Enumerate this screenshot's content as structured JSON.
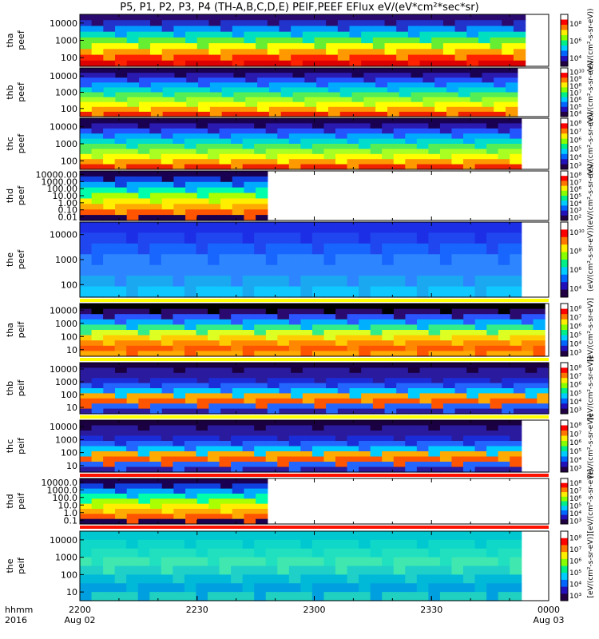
{
  "title": "P5, P1, P2, P3, P4 (TH-A,B,C,D,E) PEIF,PEEF EFlux eV/(eV*cm²*sec*sr)",
  "time_axis": {
    "label_top": "hhmm",
    "label_bottom": "2016",
    "ticks": [
      {
        "t": 0,
        "l1": "2200",
        "l2": "Aug 02"
      },
      {
        "t": 30,
        "l1": "2230",
        "l2": ""
      },
      {
        "t": 60,
        "l1": "2300",
        "l2": ""
      },
      {
        "t": 90,
        "l1": "2330",
        "l2": ""
      },
      {
        "t": 120,
        "l1": "0000",
        "l2": "Aug 03"
      }
    ]
  },
  "colorbar_label": "[eV/(cm²-s-sr-eV)]",
  "chart_data": [
    {
      "type": "heatmap",
      "probe": "tha",
      "ylabel": [
        "tha",
        "peef"
      ],
      "yticks": [
        "10000",
        "1000",
        "100"
      ],
      "cbar": [
        "10⁸",
        "10⁶",
        "10⁴"
      ],
      "t_end": 114,
      "band": "red",
      "cbar_label": "(eV/(cm²-s-sr-eV))"
    },
    {
      "type": "heatmap",
      "probe": "thb",
      "ylabel": [
        "thb",
        "peef"
      ],
      "yticks": [
        "10000",
        "1000",
        "100"
      ],
      "cbar": [
        "10¹⁰",
        "10⁹",
        "10⁸",
        "10⁷",
        "10⁶",
        "10⁵",
        "10⁴"
      ],
      "t_end": 112,
      "band": "green",
      "cbar_label": "(eV/(cm²-s-sr-eV))"
    },
    {
      "type": "heatmap",
      "probe": "thc",
      "ylabel": [
        "thc",
        "peef"
      ],
      "yticks": [
        "10000",
        "1000",
        "100"
      ],
      "cbar": [
        "10⁸",
        "10⁷",
        "10⁶",
        "10⁵",
        "10⁴",
        "10³"
      ],
      "t_end": 113,
      "band": "green",
      "cbar_label": "(eV/(cm²-s-sr-eV))"
    },
    {
      "type": "heatmap",
      "probe": "thd",
      "ylabel": [
        "thd",
        "peef"
      ],
      "yticks": [
        "10000.00",
        "1000.00",
        "100.00",
        "10.00",
        "1.00",
        "0.10",
        "0.01"
      ],
      "cbar": [
        "10⁸",
        "10⁷",
        "10⁶",
        "10⁵",
        "10⁴",
        "10³",
        "10²"
      ],
      "t_end": 48,
      "band": "yellow",
      "cbar_label": "(eV/(cm²-s-sr-eV))"
    },
    {
      "type": "heatmap",
      "probe": "the",
      "ylabel": [
        "the",
        "peef"
      ],
      "yticks": [
        "10000",
        "1000",
        "100"
      ],
      "cbar": [
        "10¹⁰",
        "10⁸",
        "10⁶",
        "10⁴"
      ],
      "t_end": 113,
      "band": "blue",
      "cbar_label": "(eV/(cm²-s-sr-eV))"
    },
    {
      "type": "heatmap",
      "probe": "tha",
      "ylabel": [
        "tha",
        "peif"
      ],
      "yticks": [
        "10000",
        "1000",
        "100",
        "10"
      ],
      "cbar": [
        "10⁸",
        "10⁷",
        "10⁶",
        "10⁵",
        "10⁴",
        "10³"
      ],
      "t_end": 119,
      "band": "orange",
      "cbar_label": "[eV/(cm²-s-sr-eV)]"
    },
    {
      "type": "heatmap",
      "probe": "thb",
      "ylabel": [
        "thb",
        "peif"
      ],
      "yticks": [
        "10000",
        "1000",
        "100",
        "10"
      ],
      "cbar": [
        "10⁸",
        "10⁷",
        "10⁶",
        "10⁵",
        "10⁴",
        "10³"
      ],
      "t_end": 120,
      "band": "navy",
      "cbar_label": "[eV/(cm²-s-sr-eV)]"
    },
    {
      "type": "heatmap",
      "probe": "thc",
      "ylabel": [
        "thc",
        "peif"
      ],
      "yticks": [
        "10000",
        "1000",
        "100",
        "10"
      ],
      "cbar": [
        "10⁸",
        "10⁷",
        "10⁶",
        "10⁵",
        "10⁴",
        "10³"
      ],
      "t_end": 113,
      "band": "navy",
      "cbar_label": "[eV/(cm²-s-sr-eV)]"
    },
    {
      "type": "heatmap",
      "probe": "thd",
      "ylabel": [
        "thd",
        "peif"
      ],
      "yticks": [
        "10000.0",
        "1000.0",
        "100.0",
        "10.0",
        "1.0",
        "0.1"
      ],
      "cbar": [
        "10⁸",
        "10⁷",
        "10⁶",
        "10⁵",
        "10⁴",
        "10³"
      ],
      "t_end": 48,
      "band": "yellow",
      "cbar_label": "[eV/(cm²-s-sr-eV)]"
    },
    {
      "type": "heatmap",
      "probe": "the",
      "ylabel": [
        "the",
        "peif"
      ],
      "yticks": [
        "10000",
        "1000",
        "100",
        "10"
      ],
      "cbar": [
        "10⁸",
        "10⁷",
        "10⁶",
        "10⁵",
        "10⁴",
        "10³"
      ],
      "t_end": 113,
      "band": "cyan",
      "cbar_label": "[eV/(cm²-s-sr-eV)]"
    }
  ]
}
